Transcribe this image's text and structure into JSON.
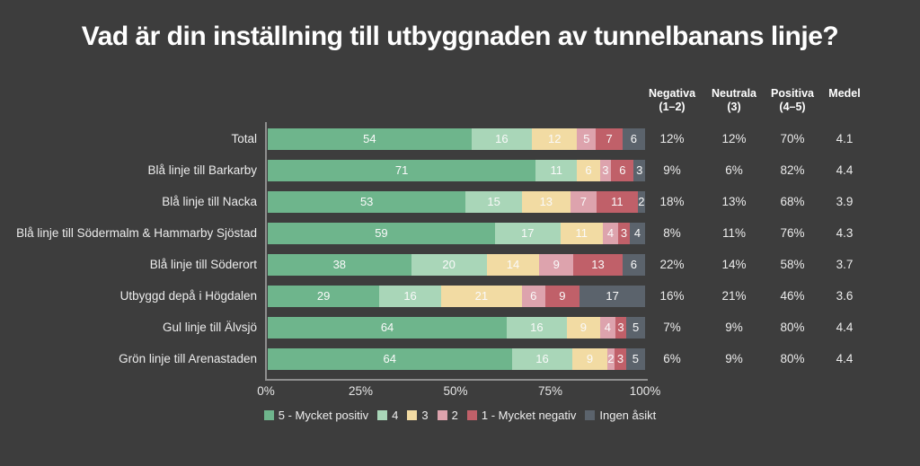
{
  "title": "Vad är din inställning till utbyggnaden av tunnelbanans linje?",
  "chart_data": {
    "type": "bar",
    "subtype": "100%-stacked-horizontal",
    "categories": [
      "Total",
      "Blå linje till Barkarby",
      "Blå linje till Nacka",
      "Blå linje till Södermalm & Hammarby Sjöstad",
      "Blå linje till Söderort",
      "Utbyggd depå i Högdalen",
      "Gul linje till Älvsjö",
      "Grön linje till Arenastaden"
    ],
    "series": [
      {
        "name": "5 - Mycket positiv",
        "color": "#6eb58c",
        "values": [
          54,
          71,
          53,
          59,
          38,
          29,
          64,
          64
        ]
      },
      {
        "name": "4",
        "color": "#a9d6b8",
        "values": [
          16,
          11,
          15,
          17,
          20,
          16,
          16,
          16
        ]
      },
      {
        "name": "3",
        "color": "#f2dba3",
        "values": [
          12,
          6,
          13,
          11,
          14,
          21,
          9,
          9
        ]
      },
      {
        "name": "2",
        "color": "#dda3ad",
        "values": [
          5,
          3,
          7,
          4,
          9,
          6,
          4,
          2
        ]
      },
      {
        "name": "1 - Mycket negativ",
        "color": "#c06069",
        "values": [
          7,
          6,
          11,
          3,
          13,
          9,
          3,
          3
        ]
      },
      {
        "name": "Ingen åsikt",
        "color": "#5b636c",
        "values": [
          6,
          3,
          2,
          4,
          6,
          17,
          5,
          5
        ]
      }
    ],
    "xlim": [
      0,
      100
    ],
    "x_tick_labels": [
      "0%",
      "25%",
      "50%",
      "75%",
      "100%"
    ],
    "grid": false,
    "legend_position": "bottom"
  },
  "stats_table": {
    "headers": [
      {
        "line1": "Negativa",
        "line2": "(1–2)"
      },
      {
        "line1": "Neutrala",
        "line2": "(3)"
      },
      {
        "line1": "Positiva",
        "line2": "(4–5)"
      },
      {
        "line1": "Medel",
        "line2": ""
      }
    ],
    "rows": [
      [
        "12%",
        "12%",
        "70%",
        "4.1"
      ],
      [
        "9%",
        "6%",
        "82%",
        "4.4"
      ],
      [
        "18%",
        "13%",
        "68%",
        "3.9"
      ],
      [
        "8%",
        "11%",
        "76%",
        "4.3"
      ],
      [
        "22%",
        "14%",
        "58%",
        "3.7"
      ],
      [
        "16%",
        "21%",
        "46%",
        "3.6"
      ],
      [
        "7%",
        "9%",
        "80%",
        "4.4"
      ],
      [
        "6%",
        "9%",
        "80%",
        "4.4"
      ]
    ]
  },
  "colors": {
    "background": "#3d3d3d",
    "axis": "#8f8f8f",
    "title_text": "#ffffff",
    "body_text": "#ececec"
  }
}
